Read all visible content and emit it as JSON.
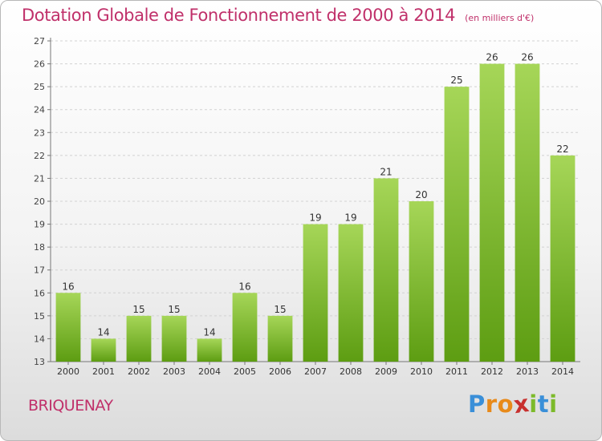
{
  "header": {
    "title": "Dotation Globale de Fonctionnement de 2000 à 2014",
    "unit": "(en milliers d'€)"
  },
  "footer": {
    "commune": "BRIQUENAY",
    "logo_letters": [
      "P",
      "r",
      "o",
      "x",
      "i",
      "t",
      "i"
    ],
    "logo_colors": [
      "#3a8fd8",
      "#e88a1a",
      "#e88a1a",
      "#c8302e",
      "#7cba2a",
      "#3a8fd8",
      "#7cba2a"
    ]
  },
  "colors": {
    "bar_top": "#a6d658",
    "bar_bottom": "#5d9d12",
    "title": "#c0306a"
  },
  "chart_data": {
    "type": "bar",
    "categories": [
      "2000",
      "2001",
      "2002",
      "2003",
      "2004",
      "2005",
      "2006",
      "2007",
      "2008",
      "2009",
      "2010",
      "2011",
      "2012",
      "2013",
      "2014"
    ],
    "values": [
      16,
      14,
      15,
      15,
      14,
      16,
      15,
      19,
      19,
      21,
      20,
      25,
      26,
      26,
      22
    ],
    "ylim": [
      13,
      27
    ],
    "yticks": [
      "13",
      "14",
      "15",
      "16",
      "17",
      "18",
      "19",
      "20",
      "21",
      "22",
      "23",
      "24",
      "25",
      "26",
      "27"
    ],
    "grid": true,
    "xlabel": "",
    "ylabel": ""
  }
}
